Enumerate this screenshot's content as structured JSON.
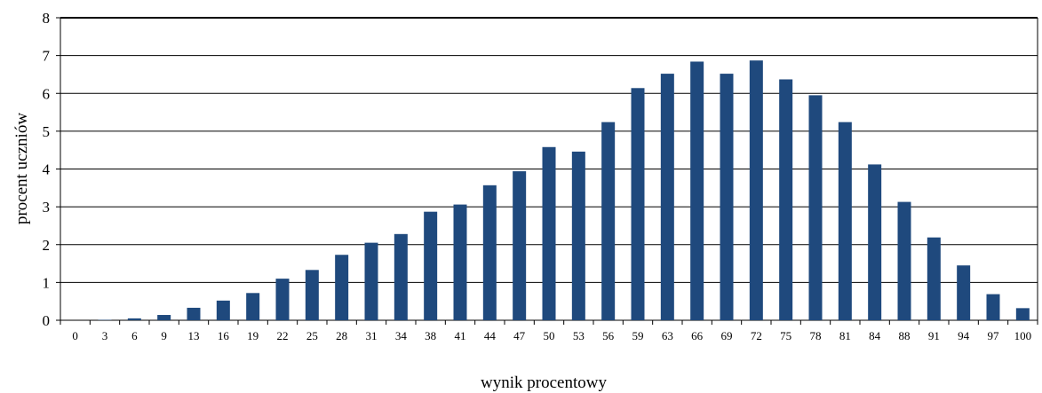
{
  "chart_data": {
    "type": "bar",
    "title": "",
    "xlabel": "wynik procentowy",
    "ylabel": "procent uczniów",
    "ylim": [
      0,
      8
    ],
    "yticks": [
      0,
      1,
      2,
      3,
      4,
      5,
      6,
      7,
      8
    ],
    "grid": true,
    "legend": "none",
    "bar_color": "#1f497d",
    "categories": [
      "0",
      "3",
      "6",
      "9",
      "13",
      "16",
      "19",
      "22",
      "25",
      "28",
      "31",
      "34",
      "38",
      "41",
      "44",
      "47",
      "50",
      "53",
      "56",
      "59",
      "63",
      "66",
      "69",
      "72",
      "75",
      "78",
      "81",
      "84",
      "88",
      "91",
      "94",
      "97",
      "100"
    ],
    "values": [
      0.0,
      0.01,
      0.05,
      0.14,
      0.33,
      0.52,
      0.72,
      1.1,
      1.33,
      1.73,
      2.05,
      2.28,
      2.87,
      3.06,
      3.57,
      3.94,
      4.58,
      4.46,
      5.24,
      6.14,
      6.52,
      6.84,
      6.52,
      6.87,
      6.37,
      5.95,
      5.24,
      4.12,
      3.13,
      2.19,
      1.45,
      0.69,
      0.32
    ]
  }
}
